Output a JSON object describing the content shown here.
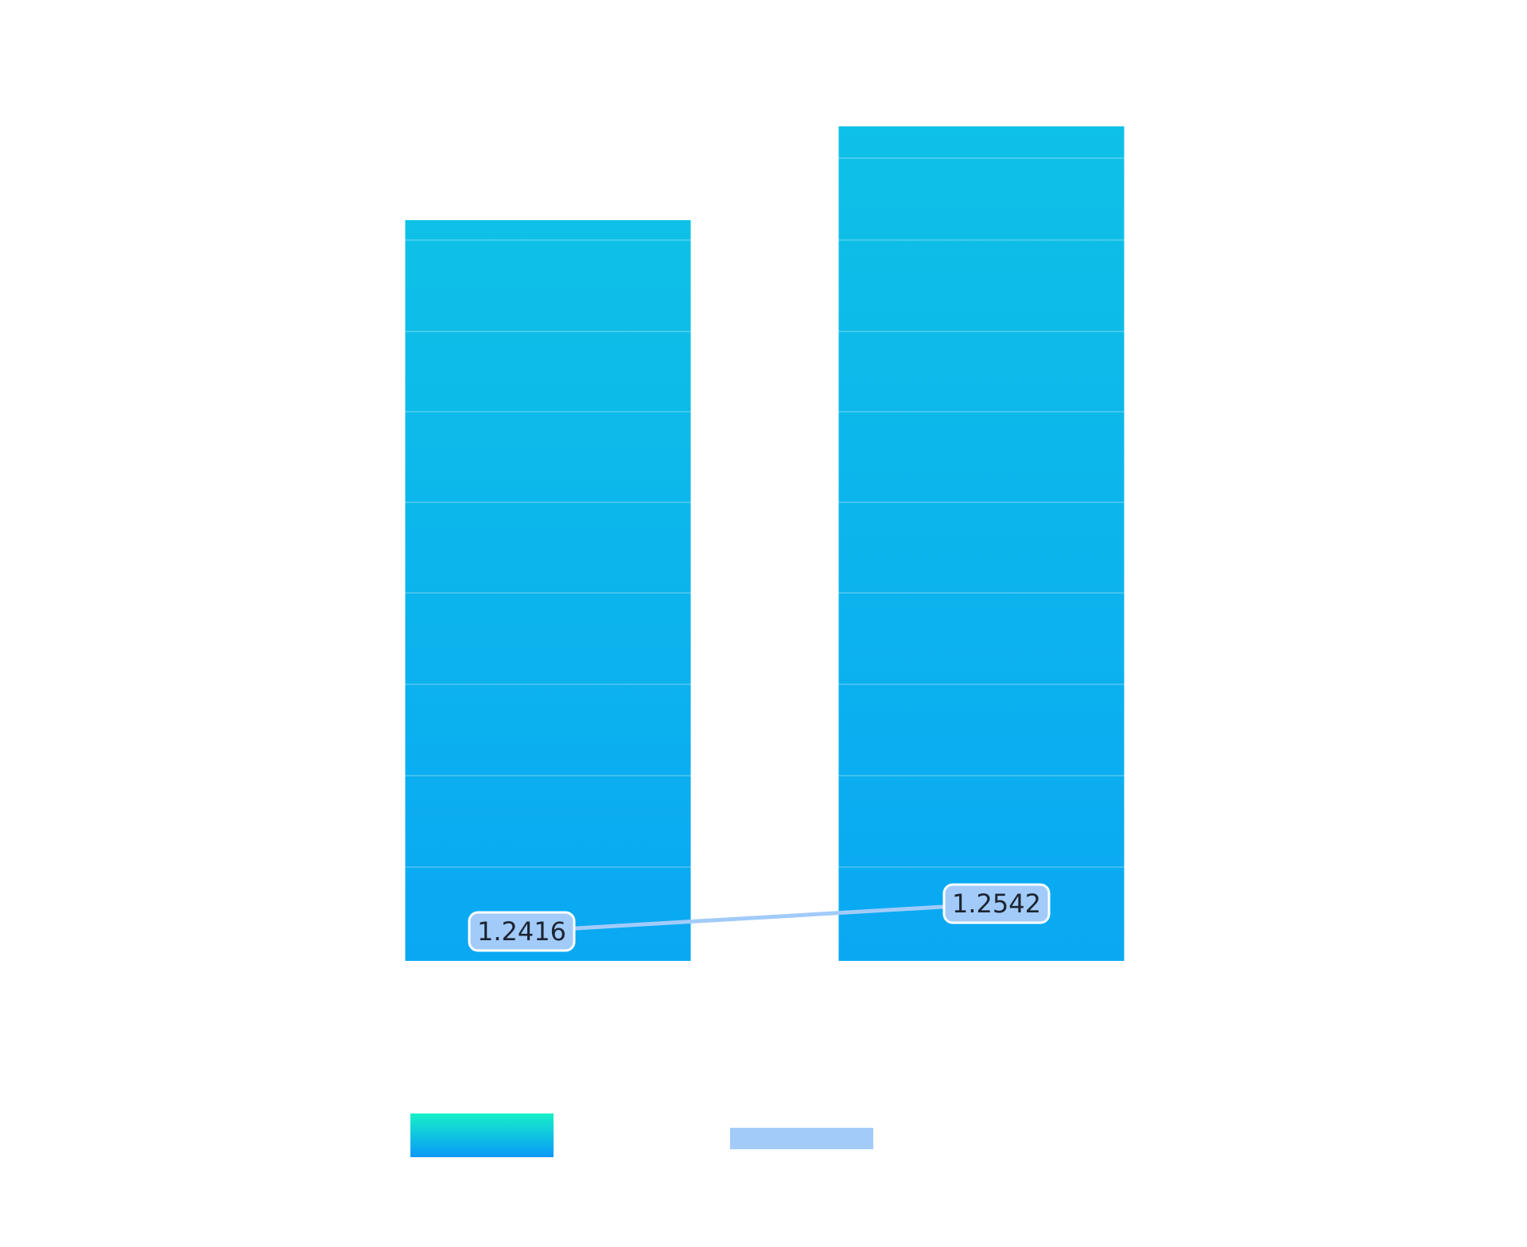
{
  "chart_data": {
    "type": "bar",
    "categories": [
      "",
      ""
    ],
    "series": [
      {
        "type": "bar",
        "values": [
          1.2416,
          1.2542
        ],
        "color_top": "#0ec1e6",
        "color_bottom": "#0aa8f3",
        "legend_color_top": "#17f0c8",
        "legend_color_bottom": "#0899f8"
      },
      {
        "type": "line",
        "values": [
          1.2416,
          1.2542
        ],
        "color": "#a2cbfa",
        "labels": [
          "1.2416",
          "1.2542"
        ]
      }
    ],
    "bar_axis": {
      "range": [
        0,
        9.2
      ]
    },
    "line_axis": {
      "range": [
        0.9,
        5.5
      ]
    },
    "grid": true,
    "legend": "bottom-center",
    "title": "",
    "xlabel": "",
    "ylabel": ""
  }
}
